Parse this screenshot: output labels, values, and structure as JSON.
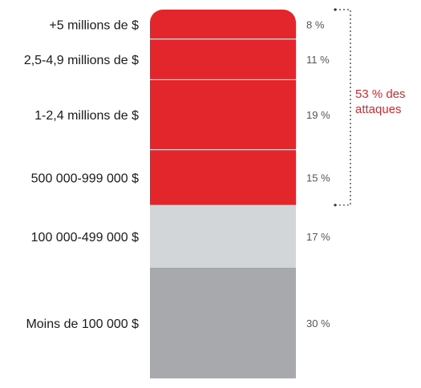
{
  "chart_data": {
    "type": "bar",
    "subtype": "stacked-column",
    "title": "",
    "xlabel": "",
    "ylabel": "",
    "categories": [
      "+5 millions de $",
      "2,5-4,9 millions de $",
      "1-2,4 millions de $",
      "500 000-999 000 $",
      "100 000-499 000 $",
      "Moins de 100 000 $"
    ],
    "values": [
      8,
      11,
      19,
      15,
      17,
      30
    ],
    "value_labels": [
      "8 %",
      "11 %",
      "19 %",
      "15 %",
      "17 %",
      "30 %"
    ],
    "colors": [
      "#e3262c",
      "#e3262c",
      "#e3262c",
      "#e3262c",
      "#d3d6d9",
      "#a8a9ac"
    ],
    "unit": "%",
    "grid": false,
    "legend": "none",
    "annotation": {
      "lines": [
        "53 % des",
        "attaques"
      ],
      "covers_categories": [
        0,
        1,
        2,
        3
      ],
      "value": 53,
      "color": "#d62b2f"
    }
  }
}
